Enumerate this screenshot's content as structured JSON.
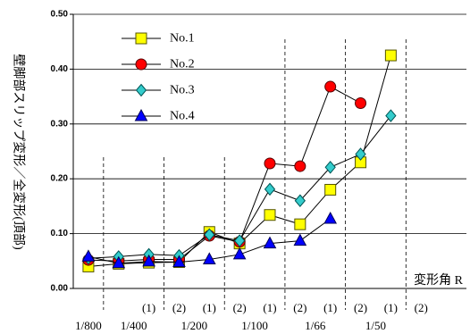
{
  "chart_data": {
    "type": "line",
    "ylabel": "壁脚部スリップ変形／全変形(頂部)",
    "xlabel": "変形角 R",
    "ylim": [
      0,
      0.5
    ],
    "yticks": [
      "0.00",
      "0.10",
      "0.20",
      "0.30",
      "0.40",
      "0.50"
    ],
    "grid": "horizontal",
    "legend_position": "top-left",
    "x_positions": 13,
    "sub_labels": [
      {
        "pos": 2,
        "text": "(1)"
      },
      {
        "pos": 3,
        "text": "(2)"
      },
      {
        "pos": 4,
        "text": "(1)"
      },
      {
        "pos": 5,
        "text": "(2)"
      },
      {
        "pos": 6,
        "text": "(1)"
      },
      {
        "pos": 7,
        "text": "(2)"
      },
      {
        "pos": 8,
        "text": "(1)"
      },
      {
        "pos": 9,
        "text": "(2)"
      },
      {
        "pos": 10,
        "text": "(1)"
      },
      {
        "pos": 11,
        "text": "(2)"
      }
    ],
    "group_labels": [
      {
        "center": 0,
        "text": "1/800"
      },
      {
        "center": 1.5,
        "text": "1/400"
      },
      {
        "center": 3.5,
        "text": "1/200"
      },
      {
        "center": 5.5,
        "text": "1/100"
      },
      {
        "center": 7.5,
        "text": "1/66"
      },
      {
        "center": 9.5,
        "text": "1/50"
      }
    ],
    "group_dividers": [
      0.5,
      2.5,
      4.5,
      6.5,
      8.5,
      10.5
    ],
    "series": [
      {
        "name": "No.1",
        "marker": "square",
        "fill": "#ffff00",
        "stroke": "#555500",
        "points": [
          [
            0,
            0.04
          ],
          [
            1,
            0.045
          ],
          [
            2,
            0.047
          ],
          [
            3,
            0.048
          ],
          [
            4,
            0.103
          ],
          [
            5,
            0.082
          ],
          [
            6,
            0.134
          ],
          [
            7,
            0.117
          ],
          [
            8,
            0.18
          ],
          [
            9,
            0.23
          ],
          [
            10,
            0.425
          ]
        ]
      },
      {
        "name": "No.2",
        "marker": "circle",
        "fill": "#ff0000",
        "stroke": "#550000",
        "points": [
          [
            0,
            0.052
          ],
          [
            1,
            0.05
          ],
          [
            2,
            0.053
          ],
          [
            3,
            0.053
          ],
          [
            4,
            0.096
          ],
          [
            5,
            0.085
          ],
          [
            6,
            0.228
          ],
          [
            7,
            0.223
          ],
          [
            8,
            0.368
          ],
          [
            9,
            0.338
          ]
        ]
      },
      {
        "name": "No.3",
        "marker": "diamond",
        "fill": "#33cccc",
        "stroke": "#005555",
        "points": [
          [
            0,
            0.055
          ],
          [
            1,
            0.058
          ],
          [
            2,
            0.062
          ],
          [
            3,
            0.06
          ],
          [
            4,
            0.098
          ],
          [
            5,
            0.087
          ],
          [
            6,
            0.181
          ],
          [
            7,
            0.16
          ],
          [
            8,
            0.221
          ],
          [
            9,
            0.245
          ],
          [
            10,
            0.315
          ]
        ]
      },
      {
        "name": "No.4",
        "marker": "triangle",
        "fill": "#0000ff",
        "stroke": "#000055",
        "points": [
          [
            0,
            0.058
          ],
          [
            1,
            0.046
          ],
          [
            2,
            0.049
          ],
          [
            3,
            0.048
          ],
          [
            4,
            0.053
          ],
          [
            5,
            0.062
          ],
          [
            6,
            0.082
          ],
          [
            7,
            0.087
          ],
          [
            8,
            0.127
          ]
        ]
      }
    ]
  }
}
